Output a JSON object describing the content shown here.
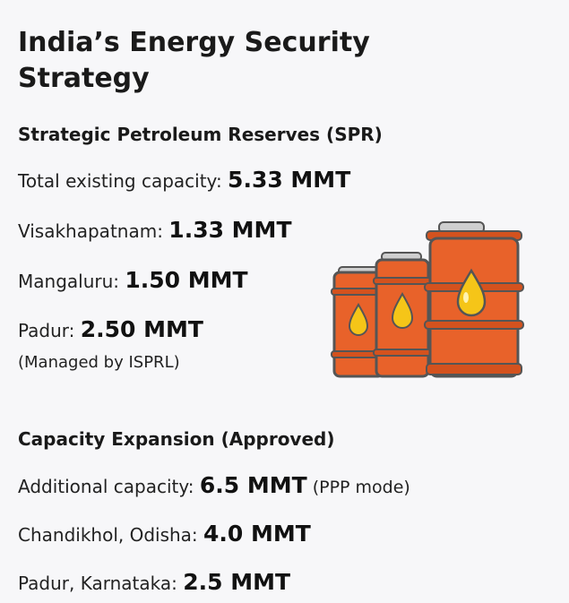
{
  "title": "India’s Energy Security Strategy",
  "spr": {
    "heading": "Strategic Petroleum Reserves (SPR)",
    "total_label": "Total existing capacity: ",
    "total_value": "5.33 MMT",
    "items": [
      {
        "label": "Visakhapatnam: ",
        "value": "1.33 MMT"
      },
      {
        "label": "Mangaluru: ",
        "value": "1.50 MMT"
      },
      {
        "label": "Padur: ",
        "value": "2.50 MMT"
      }
    ],
    "managed_note": "(Managed by ISPRL)"
  },
  "expansion": {
    "heading": "Capacity Expansion (Approved)",
    "additional_label": "Additional capacity: ",
    "additional_value": "6.5 MMT",
    "additional_note": " (PPP mode)",
    "items": [
      {
        "label": "Chandikhol, Odisha: ",
        "value": "4.0 MMT"
      },
      {
        "label": "Padur, Karnataka: ",
        "value": "2.5 MMT"
      }
    ]
  },
  "illustration": {
    "icon": "oil-barrels-icon",
    "barrel_color": "#e8622a",
    "drop_color": "#f5c518"
  }
}
